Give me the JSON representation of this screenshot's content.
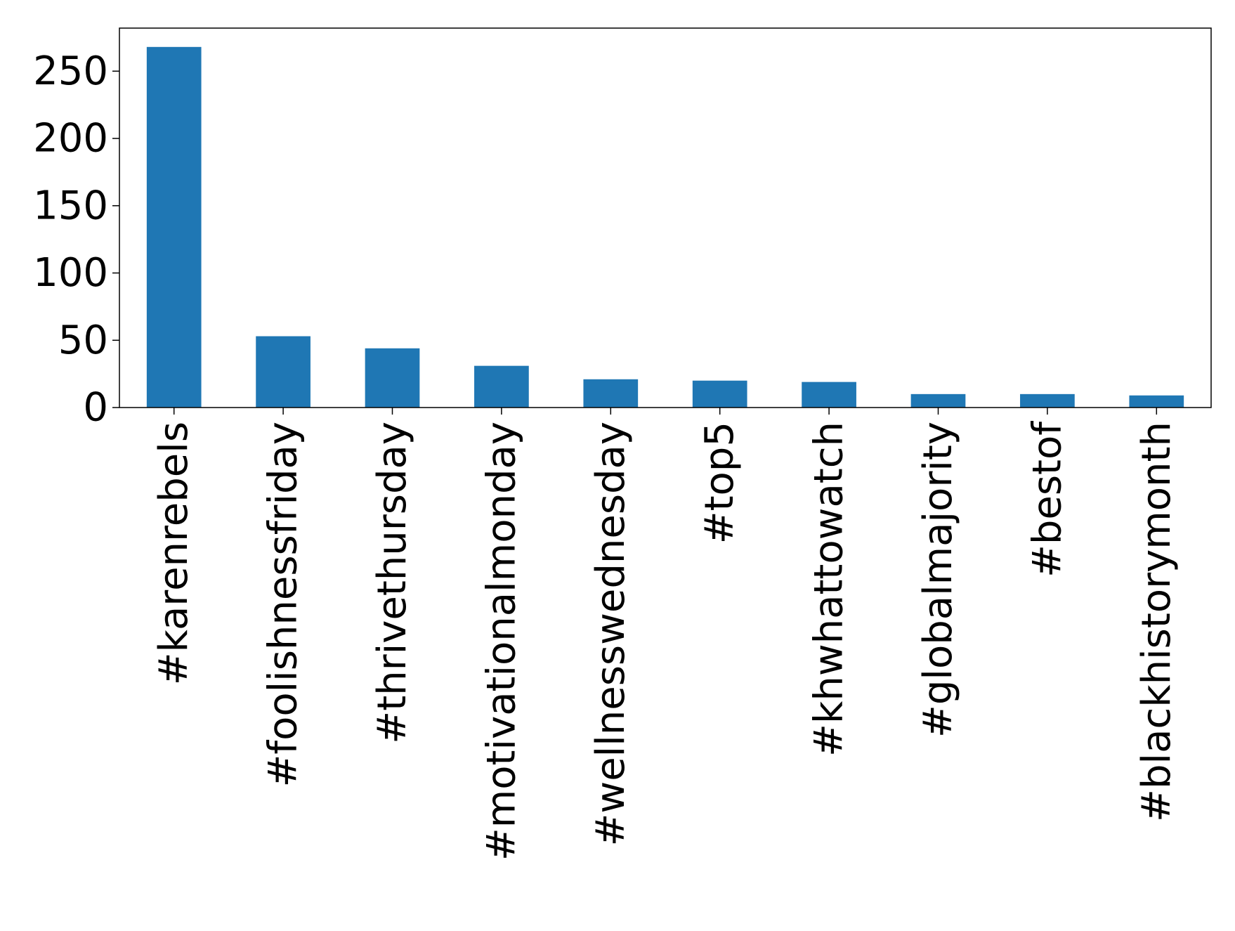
{
  "chart_data": {
    "type": "bar",
    "title": "",
    "xlabel": "",
    "ylabel": "",
    "categories": [
      "#karenrebels",
      "#foolishnessfriday",
      "#thrivethursday",
      "#motivationalmonday",
      "#wellnesswednesday",
      "#top5",
      "#khwhattowatch",
      "#globalmajority",
      "#bestof",
      "#blackhistorymonth"
    ],
    "values": [
      268,
      53,
      44,
      31,
      21,
      20,
      19,
      10,
      10,
      9
    ],
    "ylim": [
      0,
      282
    ],
    "yticks": [
      0,
      50,
      100,
      150,
      200,
      250
    ],
    "grid": false,
    "legend": "none",
    "bar_color": "#1f77b4",
    "axis_color": "#000000"
  }
}
